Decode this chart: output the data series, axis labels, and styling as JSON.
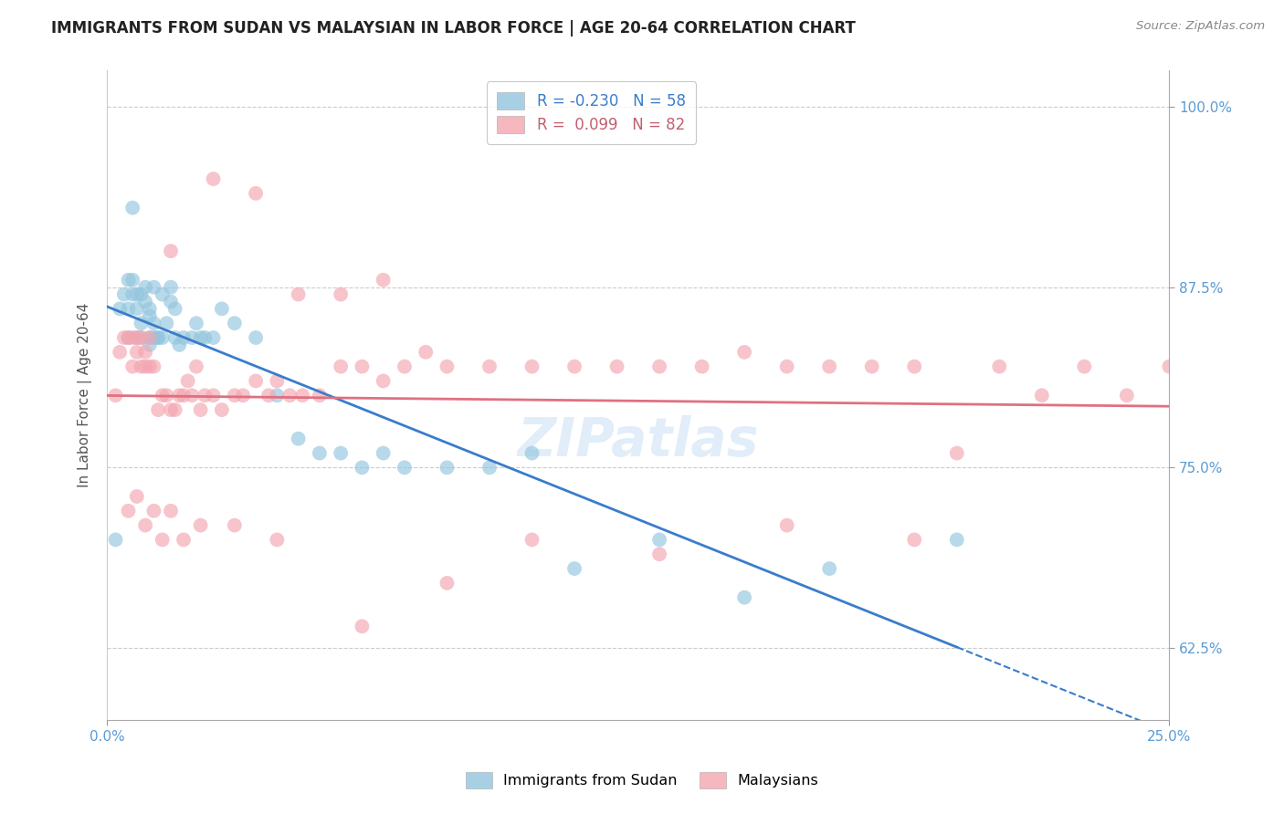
{
  "title": "IMMIGRANTS FROM SUDAN VS MALAYSIAN IN LABOR FORCE | AGE 20-64 CORRELATION CHART",
  "source": "Source: ZipAtlas.com",
  "ylabel": "In Labor Force | Age 20-64",
  "sudan_R": -0.23,
  "sudan_N": 58,
  "malaysian_R": 0.099,
  "malaysian_N": 82,
  "sudan_color": "#92c5de",
  "malaysian_color": "#f4a5b0",
  "sudan_line_color": "#3a7dc9",
  "malaysian_line_color": "#e07080",
  "xlim": [
    0.0,
    0.25
  ],
  "ylim": [
    0.575,
    1.025
  ],
  "x_ticks": [
    0.0,
    0.25
  ],
  "x_tick_labels": [
    "0.0%",
    "25.0%"
  ],
  "y_ticks": [
    0.625,
    0.75,
    0.875,
    1.0
  ],
  "y_tick_labels": [
    "62.5%",
    "75.0%",
    "87.5%",
    "100.0%"
  ],
  "background_color": "#ffffff",
  "grid_color": "#cccccc",
  "sudan_x": [
    0.002,
    0.003,
    0.004,
    0.005,
    0.005,
    0.005,
    0.006,
    0.006,
    0.006,
    0.007,
    0.007,
    0.007,
    0.008,
    0.008,
    0.008,
    0.009,
    0.009,
    0.01,
    0.01,
    0.01,
    0.01,
    0.011,
    0.011,
    0.011,
    0.012,
    0.012,
    0.013,
    0.013,
    0.014,
    0.015,
    0.015,
    0.016,
    0.016,
    0.017,
    0.018,
    0.02,
    0.021,
    0.022,
    0.023,
    0.025,
    0.027,
    0.03,
    0.035,
    0.04,
    0.045,
    0.05,
    0.055,
    0.06,
    0.065,
    0.07,
    0.08,
    0.09,
    0.1,
    0.11,
    0.13,
    0.15,
    0.17,
    0.2
  ],
  "sudan_y": [
    0.7,
    0.86,
    0.87,
    0.88,
    0.86,
    0.84,
    0.93,
    0.87,
    0.88,
    0.86,
    0.84,
    0.87,
    0.84,
    0.87,
    0.85,
    0.875,
    0.865,
    0.86,
    0.855,
    0.835,
    0.84,
    0.84,
    0.85,
    0.875,
    0.84,
    0.84,
    0.87,
    0.84,
    0.85,
    0.875,
    0.865,
    0.86,
    0.84,
    0.835,
    0.84,
    0.84,
    0.85,
    0.84,
    0.84,
    0.84,
    0.86,
    0.85,
    0.84,
    0.8,
    0.77,
    0.76,
    0.76,
    0.75,
    0.76,
    0.75,
    0.75,
    0.75,
    0.76,
    0.68,
    0.7,
    0.66,
    0.68,
    0.7
  ],
  "malaysia_x": [
    0.002,
    0.003,
    0.004,
    0.005,
    0.006,
    0.006,
    0.007,
    0.007,
    0.008,
    0.008,
    0.009,
    0.009,
    0.01,
    0.01,
    0.011,
    0.012,
    0.013,
    0.014,
    0.015,
    0.016,
    0.017,
    0.018,
    0.019,
    0.02,
    0.021,
    0.022,
    0.023,
    0.025,
    0.027,
    0.03,
    0.032,
    0.035,
    0.038,
    0.04,
    0.043,
    0.046,
    0.05,
    0.055,
    0.06,
    0.065,
    0.07,
    0.075,
    0.08,
    0.09,
    0.1,
    0.11,
    0.12,
    0.13,
    0.14,
    0.15,
    0.16,
    0.17,
    0.18,
    0.19,
    0.2,
    0.21,
    0.22,
    0.23,
    0.24,
    0.25,
    0.005,
    0.007,
    0.009,
    0.011,
    0.013,
    0.015,
    0.018,
    0.022,
    0.03,
    0.04,
    0.06,
    0.08,
    0.1,
    0.13,
    0.16,
    0.19,
    0.055,
    0.065,
    0.045,
    0.035,
    0.025,
    0.015
  ],
  "malaysia_y": [
    0.8,
    0.83,
    0.84,
    0.84,
    0.84,
    0.82,
    0.84,
    0.83,
    0.84,
    0.82,
    0.83,
    0.82,
    0.84,
    0.82,
    0.82,
    0.79,
    0.8,
    0.8,
    0.79,
    0.79,
    0.8,
    0.8,
    0.81,
    0.8,
    0.82,
    0.79,
    0.8,
    0.8,
    0.79,
    0.8,
    0.8,
    0.81,
    0.8,
    0.81,
    0.8,
    0.8,
    0.8,
    0.82,
    0.82,
    0.81,
    0.82,
    0.83,
    0.82,
    0.82,
    0.82,
    0.82,
    0.82,
    0.82,
    0.82,
    0.83,
    0.82,
    0.82,
    0.82,
    0.82,
    0.76,
    0.82,
    0.8,
    0.82,
    0.8,
    0.82,
    0.72,
    0.73,
    0.71,
    0.72,
    0.7,
    0.72,
    0.7,
    0.71,
    0.71,
    0.7,
    0.64,
    0.67,
    0.7,
    0.69,
    0.71,
    0.7,
    0.87,
    0.88,
    0.87,
    0.94,
    0.95,
    0.9
  ]
}
